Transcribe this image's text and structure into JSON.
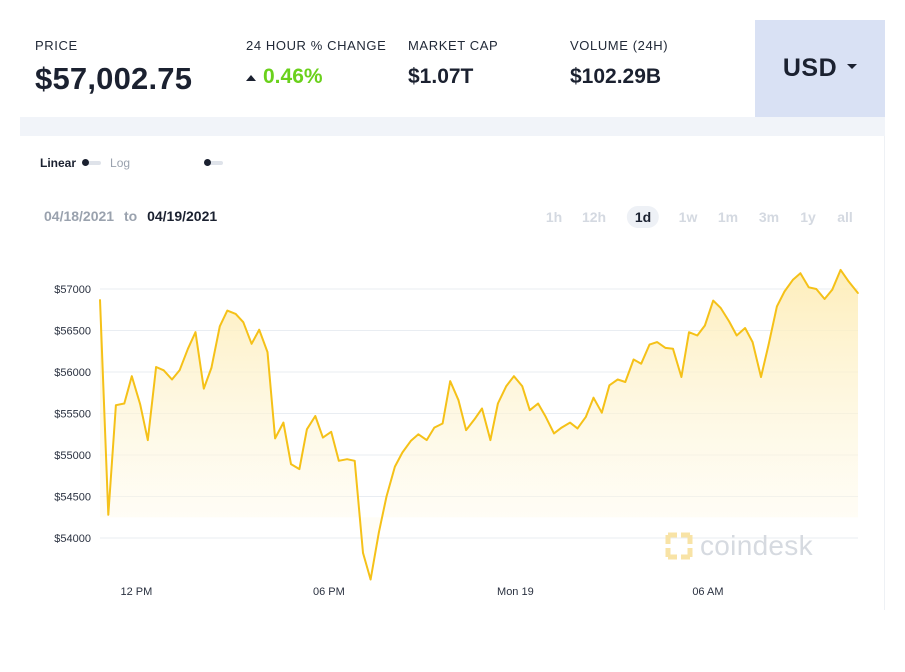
{
  "stats": {
    "price": {
      "label": "PRICE",
      "value": "$57,002.75"
    },
    "change": {
      "label": "24 HOUR % CHANGE",
      "value": "0.46%"
    },
    "market_cap": {
      "label": "MARKET CAP",
      "value": "$1.07T"
    },
    "volume": {
      "label": "VOLUME (24H)",
      "value": "$102.29B"
    }
  },
  "currency": {
    "label": "USD"
  },
  "scale": {
    "linear": "Linear",
    "log": "Log"
  },
  "date_range": {
    "from": "04/18/2021",
    "separator": "to",
    "to": "04/19/2021"
  },
  "periods": [
    {
      "label": "1h",
      "active": false
    },
    {
      "label": "12h",
      "active": false
    },
    {
      "label": "1d",
      "active": true
    },
    {
      "label": "1w",
      "active": false
    },
    {
      "label": "1m",
      "active": false
    },
    {
      "label": "3m",
      "active": false
    },
    {
      "label": "1y",
      "active": false
    },
    {
      "label": "all",
      "active": false
    }
  ],
  "watermark": "coindesk",
  "colors": {
    "line": "#f5c118",
    "fill": "#fdf3cf",
    "grid": "#e9edf2",
    "change_up": "#6ad11c",
    "currency_bg": "#d9e1f4"
  },
  "chart_data": {
    "type": "area",
    "y_tick_values": [
      54000,
      54500,
      55000,
      55500,
      56000,
      56500,
      57000
    ],
    "y_tick_labels": [
      "$54000",
      "$54500",
      "$55000",
      "$55500",
      "$56000",
      "$56500",
      "$57000"
    ],
    "x_tick_labels": [
      {
        "label": "12 PM",
        "x": 4.8
      },
      {
        "label": "06 PM",
        "x": 30.2
      },
      {
        "label": "Mon 19",
        "x": 54.8
      },
      {
        "label": "06 AM",
        "x": 80.2
      }
    ],
    "x_range": [
      0,
      100
    ],
    "y_range": [
      53750,
      57250
    ],
    "x": [
      0,
      1.1,
      2.1,
      3.2,
      4.2,
      5.3,
      6.3,
      7.4,
      8.4,
      9.5,
      10.5,
      11.6,
      12.6,
      13.7,
      14.7,
      15.8,
      16.8,
      17.9,
      18.9,
      20,
      21,
      22.1,
      23.1,
      24.2,
      25.2,
      26.3,
      27.3,
      28.4,
      29.4,
      30.5,
      31.5,
      32.6,
      33.6,
      34.7,
      35.7,
      36.8,
      37.8,
      38.9,
      39.9,
      41,
      42,
      43.1,
      44.1,
      45.2,
      46.2,
      47.3,
      48.3,
      49.4,
      50.4,
      51.5,
      52.5,
      53.6,
      54.6,
      55.7,
      56.7,
      57.8,
      58.8,
      59.9,
      60.9,
      62,
      63,
      64.1,
      65.1,
      66.2,
      67.2,
      68.3,
      69.3,
      70.4,
      71.4,
      72.5,
      73.5,
      74.6,
      75.6,
      76.7,
      77.7,
      78.8,
      79.8,
      80.9,
      81.9,
      83,
      84,
      85.1,
      86.1,
      87.2,
      88.2,
      89.3,
      90.3,
      91.4,
      92.4,
      93.5,
      94.5,
      95.6,
      96.6,
      97.7,
      98.7,
      100
    ],
    "values": [
      56870,
      54280,
      55600,
      55620,
      55950,
      55610,
      55180,
      56060,
      56020,
      55910,
      56020,
      56280,
      56480,
      55800,
      56050,
      56550,
      56740,
      56700,
      56600,
      56340,
      56510,
      56240,
      55200,
      55390,
      54890,
      54830,
      55310,
      55470,
      55210,
      55280,
      54930,
      54950,
      54930,
      53820,
      53500,
      54070,
      54500,
      54860,
      55030,
      55170,
      55250,
      55180,
      55330,
      55380,
      55890,
      55660,
      55300,
      55430,
      55560,
      55180,
      55620,
      55830,
      55950,
      55830,
      55540,
      55620,
      55460,
      55260,
      55330,
      55390,
      55320,
      55460,
      55690,
      55510,
      55840,
      55910,
      55880,
      56150,
      56100,
      56330,
      56360,
      56290,
      56280,
      55940,
      56480,
      56440,
      56560,
      56860,
      56770,
      56610,
      56440,
      56530,
      56360,
      55940,
      56330,
      56790,
      56970,
      57110,
      57190,
      57020,
      57000,
      56880,
      56990,
      57230,
      57100,
      56950
    ]
  }
}
